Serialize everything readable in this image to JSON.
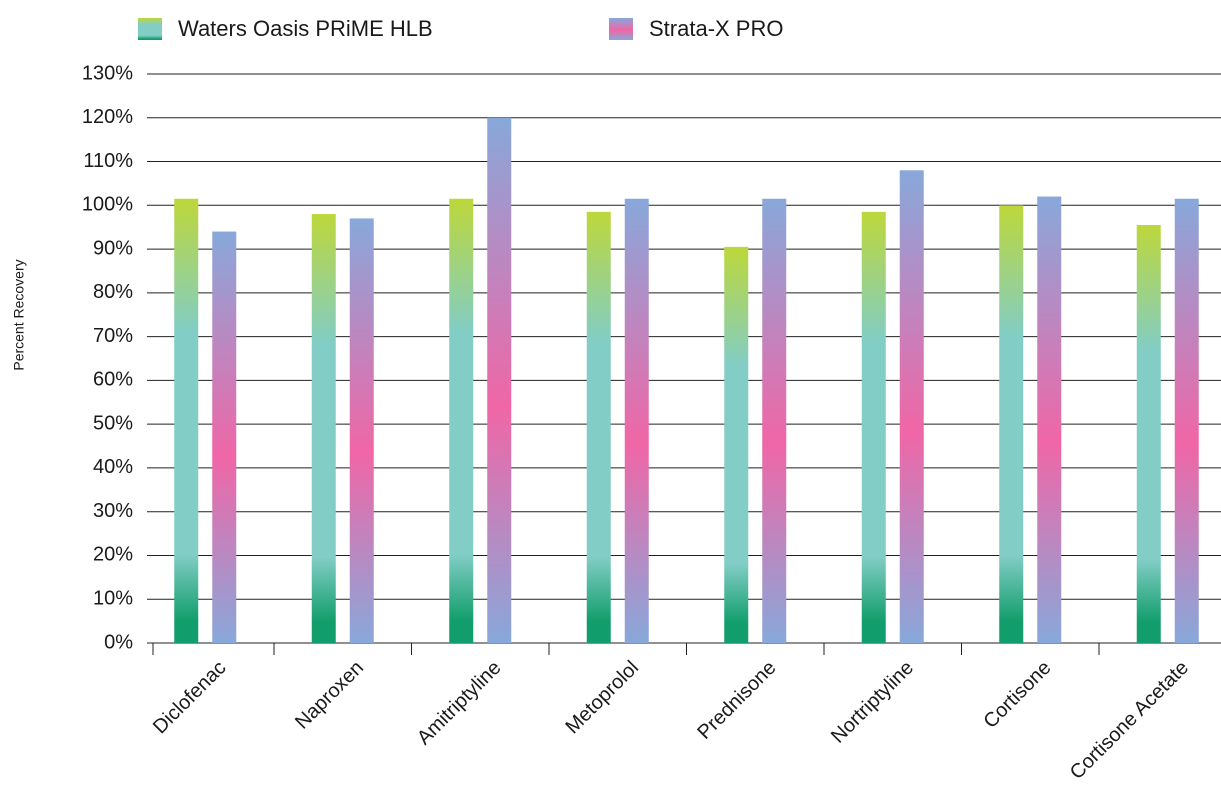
{
  "chart_data": {
    "type": "bar",
    "y_label": "Percent Recovery",
    "categories": [
      "Diclofenac",
      "Naproxen",
      "Amitriptyline",
      "Metoprolol",
      "Prednisone",
      "Nortriptyline",
      "Cortisone",
      "Cortisone Acetate"
    ],
    "series": [
      {
        "name": "Waters Oasis PRiME HLB",
        "color": "#1aa58a",
        "gradient": [
          "#bdd73a",
          "#82cdc5",
          "#82cdc5",
          "#129e6c"
        ],
        "values": [
          101.5,
          98,
          101.5,
          98.5,
          90.5,
          98.5,
          100,
          95.5
        ]
      },
      {
        "name": "Strata-X PRO",
        "color": "#8ea6d8",
        "gradient": [
          "#88a8da",
          "#f066a6",
          "#88a8da"
        ],
        "values": [
          94,
          97,
          120,
          101.5,
          101.5,
          108,
          102,
          101.5
        ]
      }
    ],
    "ylim": [
      0,
      130
    ],
    "yticks": [
      {
        "value": 0,
        "label": "0%"
      },
      {
        "value": 10,
        "label": "10%"
      },
      {
        "value": 20,
        "label": "20%"
      },
      {
        "value": 30,
        "label": "30%"
      },
      {
        "value": 40,
        "label": "40%"
      },
      {
        "value": 50,
        "label": "50%"
      },
      {
        "value": 60,
        "label": "60%"
      },
      {
        "value": 70,
        "label": "70%"
      },
      {
        "value": 80,
        "label": "80%"
      },
      {
        "value": 90,
        "label": "90%"
      },
      {
        "value": 100,
        "label": "100%"
      },
      {
        "value": 110,
        "label": "110%"
      },
      {
        "value": 120,
        "label": "120%"
      },
      {
        "value": 130,
        "label": "130%"
      }
    ],
    "grid": true
  }
}
